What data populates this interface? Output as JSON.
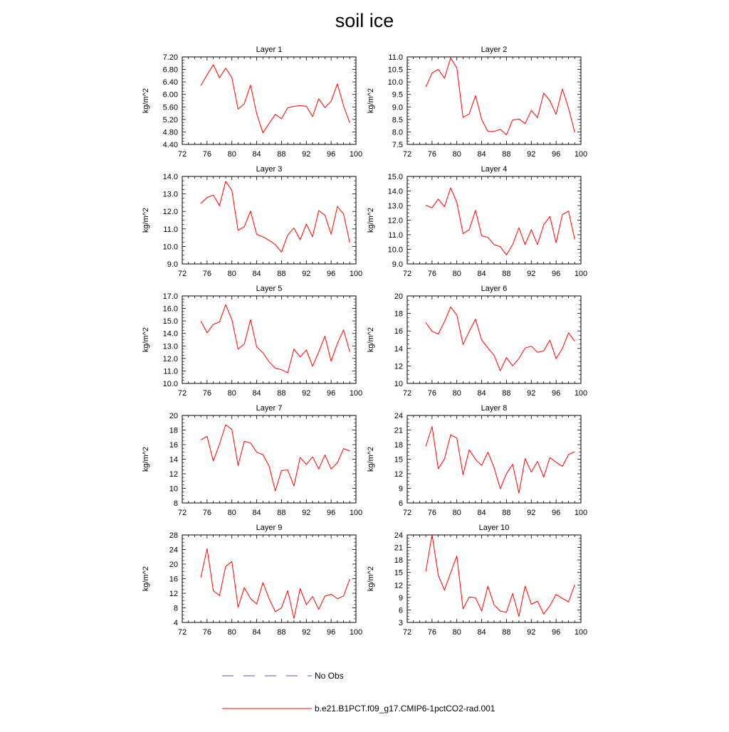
{
  "figure": {
    "title": "soil ice",
    "line_color": "#ff0000",
    "noobs_color": "#5555cc"
  },
  "legend": {
    "placement": "bottom",
    "entries": [
      {
        "label": "No Obs",
        "style": "dashed",
        "color": "#5555cc"
      },
      {
        "label": "b.e21.B1PCT.f09_g17.CMIP6-1pctCO2-rad.001",
        "style": "solid",
        "color": "#ff0000"
      }
    ]
  },
  "chart_data": [
    {
      "type": "line",
      "title": "Layer 1",
      "ylabel": "kg/m^2",
      "xlim": [
        72,
        100
      ],
      "xticks": [
        "72",
        "76",
        "80",
        "84",
        "88",
        "92",
        "96",
        "100"
      ],
      "ylim": [
        4.4,
        7.2
      ],
      "yticks": [
        "4.40",
        "4.80",
        "5.20",
        "5.60",
        "6.00",
        "6.40",
        "6.80",
        "7.20"
      ],
      "x": [
        75,
        76,
        77,
        78,
        79,
        80,
        81,
        82,
        83,
        84,
        85,
        86,
        87,
        88,
        89,
        90,
        91,
        92,
        93,
        94,
        95,
        96,
        97,
        98,
        99
      ],
      "series": [
        {
          "values": [
            6.28,
            6.63,
            6.95,
            6.53,
            6.84,
            6.54,
            5.53,
            5.7,
            6.3,
            5.38,
            4.77,
            5.07,
            5.36,
            5.22,
            5.57,
            5.62,
            5.64,
            5.62,
            5.29,
            5.86,
            5.58,
            5.78,
            6.34,
            5.63,
            5.09
          ]
        }
      ]
    },
    {
      "type": "line",
      "title": "Layer 2",
      "ylabel": "kg/m^2",
      "xlim": [
        72,
        100
      ],
      "xticks": [
        "72",
        "76",
        "80",
        "84",
        "88",
        "92",
        "96",
        "100"
      ],
      "ylim": [
        7.5,
        11.0
      ],
      "yticks": [
        "7.5",
        "8.0",
        "8.5",
        "9.0",
        "9.5",
        "10.0",
        "10.5",
        "11.0"
      ],
      "x": [
        75,
        76,
        77,
        78,
        79,
        80,
        81,
        82,
        83,
        84,
        85,
        86,
        87,
        88,
        89,
        90,
        91,
        92,
        93,
        94,
        95,
        96,
        97,
        98,
        99
      ],
      "series": [
        {
          "values": [
            9.8,
            10.35,
            10.5,
            10.15,
            10.96,
            10.55,
            8.58,
            8.72,
            9.45,
            8.5,
            8.02,
            8.02,
            8.1,
            7.88,
            8.48,
            8.52,
            8.33,
            8.86,
            8.57,
            9.55,
            9.25,
            8.7,
            9.72,
            8.95,
            7.98
          ]
        }
      ]
    },
    {
      "type": "line",
      "title": "Layer 3",
      "ylabel": "kg/m^2",
      "xlim": [
        72,
        100
      ],
      "xticks": [
        "72",
        "76",
        "80",
        "84",
        "88",
        "92",
        "96",
        "100"
      ],
      "ylim": [
        9.0,
        14.0
      ],
      "yticks": [
        "9.0",
        "10.0",
        "11.0",
        "12.0",
        "13.0",
        "14.0"
      ],
      "x": [
        75,
        76,
        77,
        78,
        79,
        80,
        81,
        82,
        83,
        84,
        85,
        86,
        87,
        88,
        89,
        90,
        91,
        92,
        93,
        94,
        95,
        96,
        97,
        98,
        99
      ],
      "series": [
        {
          "values": [
            12.45,
            12.8,
            12.93,
            12.32,
            13.72,
            13.2,
            10.92,
            11.12,
            12.02,
            10.68,
            10.55,
            10.35,
            10.1,
            9.68,
            10.65,
            11.05,
            10.38,
            11.28,
            10.55,
            12.05,
            11.78,
            10.7,
            12.28,
            11.85,
            10.22
          ]
        }
      ]
    },
    {
      "type": "line",
      "title": "Layer 4",
      "ylabel": "kg/m^2",
      "xlim": [
        72,
        100
      ],
      "xticks": [
        "72",
        "76",
        "80",
        "84",
        "88",
        "92",
        "96",
        "100"
      ],
      "ylim": [
        9.0,
        15.0
      ],
      "yticks": [
        "9.0",
        "10.0",
        "11.0",
        "12.0",
        "13.0",
        "14.0",
        "15.0"
      ],
      "x": [
        75,
        76,
        77,
        78,
        79,
        80,
        81,
        82,
        83,
        84,
        85,
        86,
        87,
        88,
        89,
        90,
        91,
        92,
        93,
        94,
        95,
        96,
        97,
        98,
        99
      ],
      "series": [
        {
          "values": [
            13.02,
            12.85,
            13.45,
            12.92,
            14.22,
            13.22,
            11.08,
            11.35,
            12.68,
            10.92,
            10.82,
            10.32,
            10.18,
            9.62,
            10.32,
            11.48,
            10.32,
            11.35,
            10.32,
            11.68,
            12.25,
            10.45,
            12.38,
            12.62,
            10.68
          ]
        }
      ]
    },
    {
      "type": "line",
      "title": "Layer 5",
      "ylabel": "kg/m^2",
      "xlim": [
        72,
        100
      ],
      "xticks": [
        "72",
        "76",
        "80",
        "84",
        "88",
        "92",
        "96",
        "100"
      ],
      "ylim": [
        10.0,
        17.0
      ],
      "yticks": [
        "10.0",
        "11.0",
        "12.0",
        "13.0",
        "14.0",
        "15.0",
        "16.0",
        "17.0"
      ],
      "x": [
        75,
        76,
        77,
        78,
        79,
        80,
        81,
        82,
        83,
        84,
        85,
        86,
        87,
        88,
        89,
        90,
        91,
        92,
        93,
        94,
        95,
        96,
        97,
        98,
        99
      ],
      "series": [
        {
          "values": [
            14.98,
            14.05,
            14.72,
            14.92,
            16.3,
            15.1,
            12.75,
            13.15,
            15.1,
            12.92,
            12.45,
            11.72,
            11.22,
            11.1,
            10.85,
            12.75,
            12.12,
            12.68,
            11.38,
            12.52,
            13.78,
            11.78,
            13.2,
            14.28,
            12.52
          ]
        }
      ]
    },
    {
      "type": "line",
      "title": "Layer 6",
      "ylabel": "kg/m^2",
      "xlim": [
        72,
        100
      ],
      "xticks": [
        "72",
        "76",
        "80",
        "84",
        "88",
        "92",
        "96",
        "100"
      ],
      "ylim": [
        10,
        20
      ],
      "yticks": [
        "10",
        "12",
        "14",
        "16",
        "18",
        "20"
      ],
      "x": [
        75,
        76,
        77,
        78,
        79,
        80,
        81,
        82,
        83,
        84,
        85,
        86,
        87,
        88,
        89,
        90,
        91,
        92,
        93,
        94,
        95,
        96,
        97,
        98,
        99
      ],
      "series": [
        {
          "values": [
            16.95,
            15.95,
            15.65,
            17.05,
            18.75,
            17.82,
            14.45,
            15.95,
            17.35,
            14.95,
            14.05,
            13.22,
            11.45,
            12.95,
            12.02,
            12.85,
            14.05,
            14.25,
            13.55,
            13.72,
            14.95,
            12.82,
            13.98,
            15.78,
            14.82
          ]
        }
      ]
    },
    {
      "type": "line",
      "title": "Layer 7",
      "ylabel": "kg/m^2",
      "xlim": [
        72,
        100
      ],
      "xticks": [
        "72",
        "76",
        "80",
        "84",
        "88",
        "92",
        "96",
        "100"
      ],
      "ylim": [
        8,
        20
      ],
      "yticks": [
        "8",
        "10",
        "12",
        "14",
        "16",
        "18",
        "20"
      ],
      "x": [
        75,
        76,
        77,
        78,
        79,
        80,
        81,
        82,
        83,
        84,
        85,
        86,
        87,
        88,
        89,
        90,
        91,
        92,
        93,
        94,
        95,
        96,
        97,
        98,
        99
      ],
      "series": [
        {
          "values": [
            16.65,
            17.12,
            13.75,
            16.05,
            18.72,
            18.08,
            13.15,
            16.45,
            16.22,
            14.95,
            14.62,
            13.05,
            9.65,
            12.45,
            12.52,
            10.32,
            14.25,
            13.28,
            14.32,
            12.65,
            14.58,
            12.65,
            13.52,
            15.45,
            15.12
          ]
        }
      ]
    },
    {
      "type": "line",
      "title": "Layer 8",
      "ylabel": "kg/m^2",
      "xlim": [
        72,
        100
      ],
      "xticks": [
        "72",
        "76",
        "80",
        "84",
        "88",
        "92",
        "96",
        "100"
      ],
      "ylim": [
        6,
        24
      ],
      "yticks": [
        "6",
        "9",
        "12",
        "15",
        "18",
        "21",
        "24"
      ],
      "x": [
        75,
        76,
        77,
        78,
        79,
        80,
        81,
        82,
        83,
        84,
        85,
        86,
        87,
        88,
        89,
        90,
        91,
        92,
        93,
        94,
        95,
        96,
        97,
        98,
        99
      ],
      "series": [
        {
          "values": [
            17.65,
            21.72,
            13.05,
            15.05,
            20.02,
            19.35,
            11.82,
            16.95,
            14.95,
            13.72,
            16.45,
            13.28,
            8.92,
            12.05,
            13.95,
            8.02,
            15.15,
            12.35,
            14.55,
            11.32,
            15.35,
            14.35,
            13.52,
            15.95,
            16.52
          ]
        }
      ]
    },
    {
      "type": "line",
      "title": "Layer 9",
      "ylabel": "kg/m^2",
      "xlim": [
        72,
        100
      ],
      "xticks": [
        "72",
        "76",
        "80",
        "84",
        "88",
        "92",
        "96",
        "100"
      ],
      "ylim": [
        4,
        28
      ],
      "yticks": [
        "4",
        "8",
        "12",
        "16",
        "20",
        "24",
        "28"
      ],
      "x": [
        75,
        76,
        77,
        78,
        79,
        80,
        81,
        82,
        83,
        84,
        85,
        86,
        87,
        88,
        89,
        90,
        91,
        92,
        93,
        94,
        95,
        96,
        97,
        98,
        99
      ],
      "series": [
        {
          "values": [
            16.35,
            24.25,
            12.75,
            11.35,
            19.35,
            20.72,
            8.18,
            13.52,
            10.55,
            9.05,
            14.95,
            10.52,
            6.95,
            8.02,
            12.72,
            5.12,
            13.28,
            8.85,
            11.12,
            7.58,
            11.22,
            11.72,
            10.52,
            11.25,
            15.92
          ]
        }
      ]
    },
    {
      "type": "line",
      "title": "Layer 10",
      "ylabel": "kg/m^2",
      "xlim": [
        72,
        100
      ],
      "xticks": [
        "72",
        "76",
        "80",
        "84",
        "88",
        "92",
        "96",
        "100"
      ],
      "ylim": [
        3,
        24
      ],
      "yticks": [
        "3",
        "6",
        "9",
        "12",
        "15",
        "18",
        "21",
        "24"
      ],
      "x": [
        75,
        76,
        77,
        78,
        79,
        80,
        81,
        82,
        83,
        84,
        85,
        86,
        87,
        88,
        89,
        90,
        91,
        92,
        93,
        94,
        95,
        96,
        97,
        98,
        99
      ],
      "series": [
        {
          "values": [
            15.25,
            24.05,
            14.35,
            10.75,
            14.95,
            18.95,
            6.25,
            9.12,
            8.92,
            5.75,
            11.72,
            7.22,
            5.72,
            5.45,
            9.95,
            4.45,
            11.72,
            7.35,
            8.12,
            5.02,
            7.02,
            9.72,
            8.75,
            7.95,
            12.05
          ]
        }
      ]
    }
  ]
}
